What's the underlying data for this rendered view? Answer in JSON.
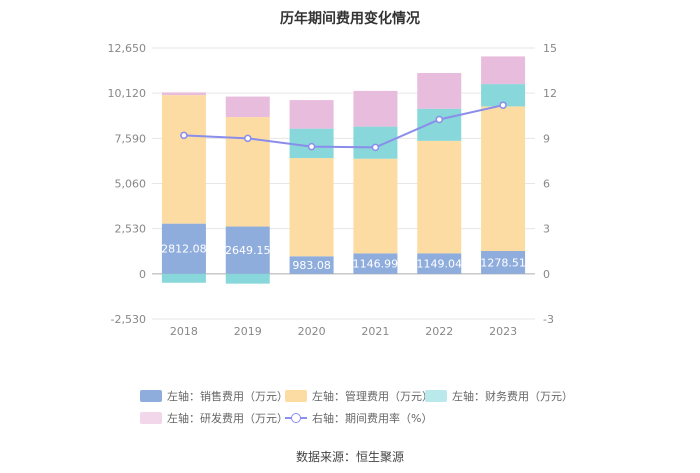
{
  "title": "历年期间费用变化情况",
  "source": "数据来源：恒生聚源",
  "chart_data": {
    "type": "bar",
    "stacked": true,
    "title": "历年期间费用变化情况",
    "categories": [
      "2018",
      "2019",
      "2020",
      "2021",
      "2022",
      "2023"
    ],
    "y_left": {
      "ticks": [
        "12,650",
        "10,120",
        "7,590",
        "5,060",
        "2,530",
        "0",
        "-2,530"
      ],
      "range": [
        -2530,
        12650
      ]
    },
    "y_right": {
      "ticks": [
        "15",
        "12",
        "9",
        "6",
        "3",
        "0",
        "-3"
      ],
      "range": [
        -3,
        15
      ]
    },
    "series": [
      {
        "name": "左轴：销售费用（万元）",
        "axis": "left",
        "color": "#8eacdc",
        "values": [
          2812.08,
          2649.15,
          983.08,
          1146.99,
          1149.04,
          1278.51
        ],
        "labels": [
          "2812.08",
          "2649.15",
          "983.08",
          "1146.99",
          "1149.04",
          "1278.51"
        ]
      },
      {
        "name": "左轴：管理费用（万元）",
        "axis": "left",
        "color": "#fddca3",
        "values": [
          7200,
          6130,
          5500,
          5300,
          6300,
          8100
        ]
      },
      {
        "name": "左轴：财务费用（万元）",
        "axis": "left",
        "color": "#88d7da",
        "values": [
          -500,
          -550,
          1650,
          1800,
          1800,
          1250
        ]
      },
      {
        "name": "左轴：研发费用（万元）",
        "axis": "left",
        "color": "#e8bcdc",
        "values": [
          150,
          1150,
          1600,
          2000,
          2000,
          1550
        ]
      },
      {
        "name": "右轴：期间费用率（%）",
        "axis": "right",
        "type": "line",
        "color": "#8a8dea",
        "values": [
          9.2,
          9.0,
          8.45,
          8.4,
          10.25,
          11.2
        ]
      }
    ]
  }
}
